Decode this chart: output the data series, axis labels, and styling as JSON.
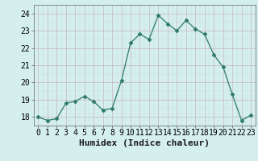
{
  "x": [
    0,
    1,
    2,
    3,
    4,
    5,
    6,
    7,
    8,
    9,
    10,
    11,
    12,
    13,
    14,
    15,
    16,
    17,
    18,
    19,
    20,
    21,
    22,
    23
  ],
  "y": [
    18.0,
    17.8,
    17.9,
    18.8,
    18.9,
    19.2,
    18.9,
    18.4,
    18.5,
    20.1,
    22.3,
    22.8,
    22.5,
    23.9,
    23.4,
    23.0,
    23.6,
    23.1,
    22.8,
    21.6,
    20.9,
    19.3,
    17.8,
    18.1
  ],
  "xlabel": "Humidex (Indice chaleur)",
  "ylim": [
    17.5,
    24.5
  ],
  "xlim": [
    -0.5,
    23.5
  ],
  "yticks": [
    18,
    19,
    20,
    21,
    22,
    23,
    24
  ],
  "xtick_labels": [
    "0",
    "1",
    "2",
    "3",
    "4",
    "5",
    "6",
    "7",
    "8",
    "9",
    "10",
    "11",
    "12",
    "13",
    "14",
    "15",
    "16",
    "17",
    "18",
    "19",
    "20",
    "21",
    "22",
    "23"
  ],
  "line_color": "#2d7a6a",
  "marker": "D",
  "marker_size": 2.5,
  "bg_color": "#d5eeee",
  "grid_color_major": "#c8b8b8",
  "grid_color_minor": "#c5dede",
  "xlabel_fontsize": 8,
  "tick_fontsize": 7
}
